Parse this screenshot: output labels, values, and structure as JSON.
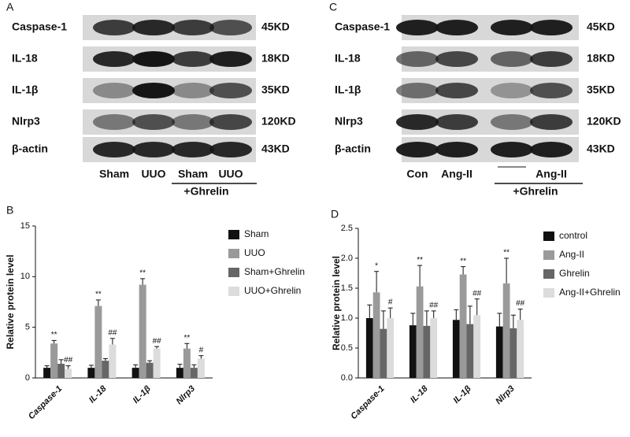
{
  "blots": [
    {
      "panel_label": "A",
      "rows": [
        {
          "protein": "Caspase-1",
          "size": "45KD"
        },
        {
          "protein": "IL-18",
          "size": "18KD"
        },
        {
          "protein": "IL-1β",
          "size": "35KD"
        },
        {
          "protein": "Nlrp3",
          "size": "120KD"
        },
        {
          "protein": "β-actin",
          "size": "43KD"
        }
      ],
      "lanes": [
        "Sham",
        "UUO",
        "Sham",
        "UUO"
      ],
      "group_label": "+Ghrelin"
    },
    {
      "panel_label": "C",
      "rows": [
        {
          "protein": "Caspase-1",
          "size": "45KD"
        },
        {
          "protein": "IL-18",
          "size": "18KD"
        },
        {
          "protein": "IL-1β",
          "size": "35KD"
        },
        {
          "protein": "Nlrp3",
          "size": "120KD"
        },
        {
          "protein": "β-actin",
          "size": "43KD"
        }
      ],
      "lanes": [
        "Con",
        "Ang-II",
        null,
        "Ang-II"
      ],
      "group_label": "+Ghrelin"
    }
  ],
  "chart_data": [
    {
      "type": "bar",
      "panel_label": "B",
      "y_label": "Relative protein level",
      "categories": [
        "Caspase-1",
        "IL-18",
        "IL-1β",
        "Nlrp3"
      ],
      "ylim": [
        0,
        15
      ],
      "yticks": [
        0,
        5,
        10,
        15
      ],
      "series": [
        {
          "name": "Sham",
          "color": "#111111",
          "values": [
            1.0,
            1.0,
            1.0,
            1.0
          ],
          "errors": [
            0.2,
            0.25,
            0.3,
            0.35
          ],
          "annotations": [
            null,
            null,
            null,
            null
          ]
        },
        {
          "name": "UUO",
          "color": "#9a9a9a",
          "values": [
            3.4,
            7.1,
            9.2,
            2.9
          ],
          "errors": [
            0.3,
            0.6,
            0.6,
            0.5
          ],
          "annotations": [
            "**",
            "**",
            "**",
            "**"
          ]
        },
        {
          "name": "Sham+Ghrelin",
          "color": "#666666",
          "values": [
            1.4,
            1.7,
            1.5,
            1.0
          ],
          "errors": [
            0.4,
            0.2,
            0.2,
            0.3
          ],
          "annotations": [
            null,
            null,
            null,
            null
          ]
        },
        {
          "name": "UUO+Ghrelin",
          "color": "#dcdcdc",
          "values": [
            0.9,
            3.3,
            2.9,
            1.9
          ],
          "errors": [
            0.3,
            0.6,
            0.2,
            0.3
          ],
          "annotations": [
            "##",
            "##",
            "##",
            "#"
          ]
        }
      ]
    },
    {
      "type": "bar",
      "panel_label": "D",
      "y_label": "Relative protein level",
      "categories": [
        "Caspase-1",
        "IL-18",
        "IL-1β",
        "Nlrp3"
      ],
      "ylim": [
        0,
        2.5
      ],
      "yticks": [
        {
          "value": 0,
          "label": "0.0"
        },
        0.5,
        {
          "value": 1,
          "label": "1.0"
        },
        1.5,
        {
          "value": 2,
          "label": "2.0"
        },
        2.5
      ],
      "series": [
        {
          "name": "control",
          "color": "#111111",
          "values": [
            1.0,
            0.88,
            0.97,
            0.86
          ],
          "errors": [
            0.22,
            0.2,
            0.17,
            0.22
          ],
          "annotations": [
            null,
            null,
            null,
            null
          ]
        },
        {
          "name": "Ang-II",
          "color": "#9a9a9a",
          "values": [
            1.43,
            1.53,
            1.73,
            1.58
          ],
          "errors": [
            0.35,
            0.35,
            0.13,
            0.42
          ],
          "annotations": [
            "*",
            "**",
            "**",
            "**"
          ]
        },
        {
          "name": "Ghrelin",
          "color": "#666666",
          "values": [
            0.82,
            0.87,
            0.9,
            0.83
          ],
          "errors": [
            0.3,
            0.25,
            0.3,
            0.22
          ],
          "annotations": [
            null,
            null,
            null,
            null
          ]
        },
        {
          "name": "Ang-II+Ghrelin",
          "color": "#dcdcdc",
          "values": [
            1.0,
            1.0,
            1.05,
            0.97
          ],
          "errors": [
            0.17,
            0.12,
            0.27,
            0.18
          ],
          "annotations": [
            "#",
            "##",
            "##",
            "##"
          ]
        }
      ]
    }
  ]
}
